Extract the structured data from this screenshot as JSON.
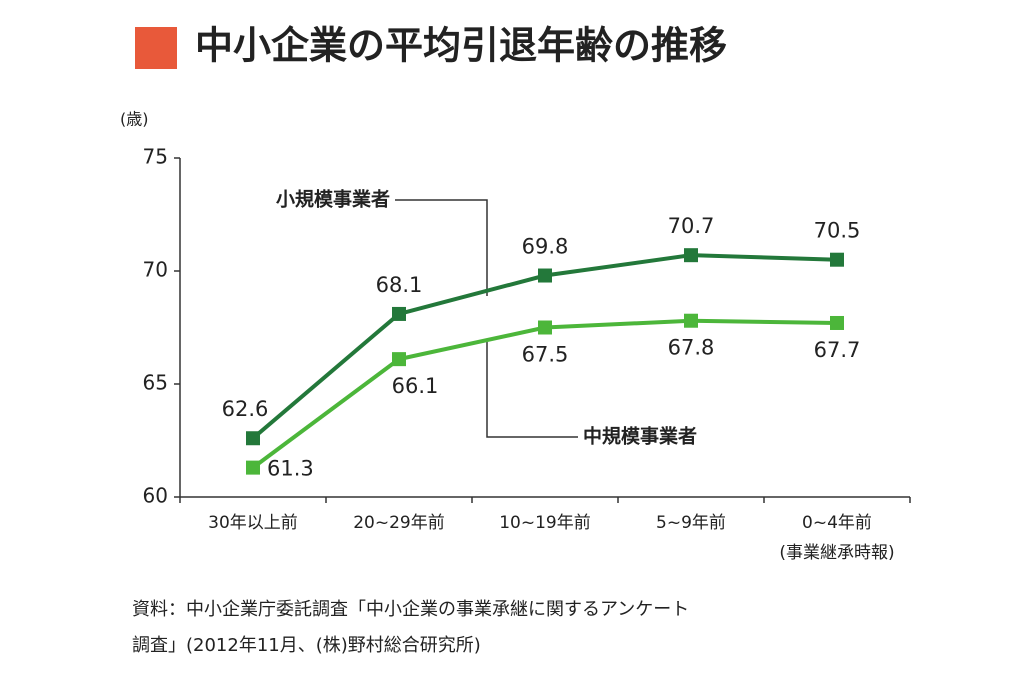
{
  "chart_data": {
    "type": "line",
    "title": "中小企業の平均引退年齢の推移",
    "y_unit": "(歳)",
    "categories": [
      "30年以上前",
      "20~29年前",
      "10~19年前",
      "5~9年前",
      "0~4年前"
    ],
    "x_note": "(事業継承時報)",
    "series": [
      {
        "name": "小規模事業者",
        "color": "#23783a",
        "values": [
          62.6,
          68.1,
          69.8,
          70.7,
          70.5
        ]
      },
      {
        "name": "中規模事業者",
        "color": "#4cb63a",
        "values": [
          61.3,
          66.1,
          67.5,
          67.8,
          67.7
        ]
      }
    ],
    "ylim": [
      60,
      75
    ],
    "yticks": [
      60,
      65,
      70,
      75
    ],
    "grid": false,
    "source": [
      "資料：中小企業庁委託調査「中小企業の事業承継に関するアンケート",
      "調査」(2012年11月、(株)野村総合研究所)"
    ]
  }
}
